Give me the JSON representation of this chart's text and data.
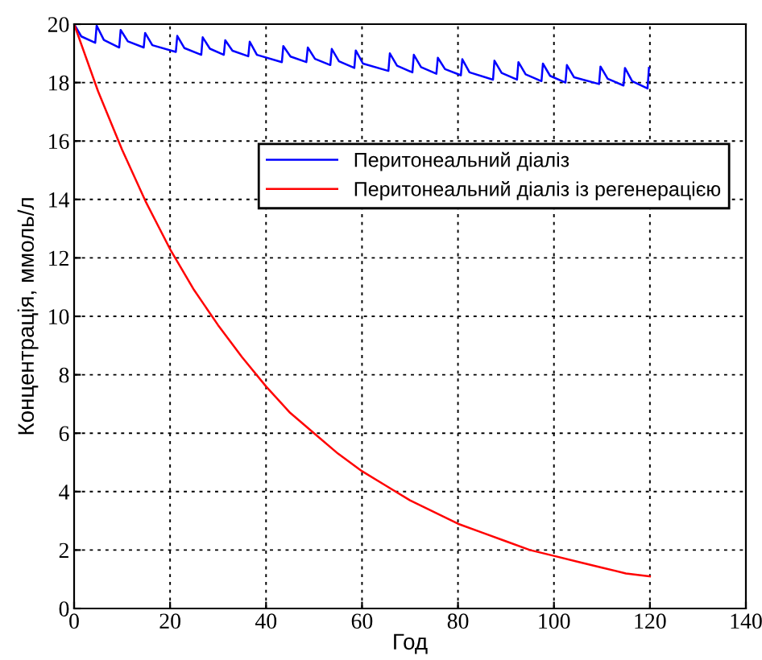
{
  "chart_data": {
    "type": "line",
    "xlabel": "Год",
    "ylabel": "Концентрація, ммоль/л",
    "xlim": [
      0,
      140
    ],
    "ylim": [
      0,
      20
    ],
    "xticks": [
      0,
      20,
      40,
      60,
      80,
      100,
      120,
      140
    ],
    "yticks": [
      0,
      2,
      4,
      6,
      8,
      10,
      12,
      14,
      16,
      18,
      20
    ],
    "grid": true,
    "legend": "right",
    "line_style": "solid",
    "marker": "none",
    "series": [
      {
        "name": "Перитонеальний діаліз",
        "color": "#0000ff",
        "x": [
          0,
          1.5,
          4.4,
          4.7,
          6.2,
          9.4,
          9.7,
          11.2,
          14.5,
          14.8,
          16.3,
          21.2,
          21.5,
          23.0,
          26.5,
          26.8,
          28.3,
          31.2,
          31.5,
          33.0,
          36.3,
          36.6,
          38.1,
          43.3,
          43.6,
          45.1,
          48.4,
          48.7,
          50.2,
          53.4,
          53.7,
          55.2,
          58.4,
          58.7,
          60.2,
          65.5,
          65.8,
          67.3,
          70.5,
          70.8,
          72.3,
          75.5,
          75.8,
          77.3,
          80.6,
          80.9,
          82.4,
          87.3,
          87.6,
          89.1,
          92.3,
          92.6,
          94.1,
          97.4,
          97.7,
          99.2,
          102.4,
          102.7,
          104.2,
          109.4,
          109.7,
          111.2,
          114.5,
          114.8,
          116.3,
          119.5,
          119.8
        ],
        "values": [
          20,
          19.58,
          19.36,
          19.95,
          19.46,
          19.2,
          19.8,
          19.41,
          19.2,
          19.7,
          19.28,
          19.05,
          19.6,
          19.18,
          18.95,
          19.55,
          19.16,
          18.95,
          19.45,
          19.09,
          18.9,
          19.4,
          18.95,
          18.7,
          19.25,
          18.89,
          18.7,
          19.2,
          18.81,
          18.6,
          19.15,
          18.73,
          18.5,
          19.1,
          18.65,
          18.4,
          19.0,
          18.58,
          18.35,
          18.95,
          18.53,
          18.3,
          18.85,
          18.46,
          18.25,
          18.8,
          18.35,
          18.1,
          18.75,
          18.33,
          18.1,
          18.7,
          18.28,
          18.05,
          18.65,
          18.23,
          18.0,
          18.6,
          18.18,
          17.95,
          18.55,
          18.13,
          17.9,
          18.5,
          18.05,
          17.8,
          18.5
        ]
      },
      {
        "name": "Перитонеальний діаліз із регенерацією",
        "color": "#ff0000",
        "x": [
          0,
          5,
          10,
          15,
          20,
          25,
          30,
          35,
          40,
          45,
          50,
          55,
          60,
          65,
          70,
          75,
          80,
          85,
          90,
          95,
          100,
          105,
          110,
          115,
          120
        ],
        "values": [
          20,
          17.7,
          15.7,
          13.9,
          12.3,
          10.9,
          9.7,
          8.6,
          7.6,
          6.7,
          6.0,
          5.3,
          4.7,
          4.2,
          3.7,
          3.3,
          2.9,
          2.6,
          2.3,
          2.0,
          1.8,
          1.6,
          1.4,
          1.2,
          1.1
        ]
      }
    ]
  }
}
